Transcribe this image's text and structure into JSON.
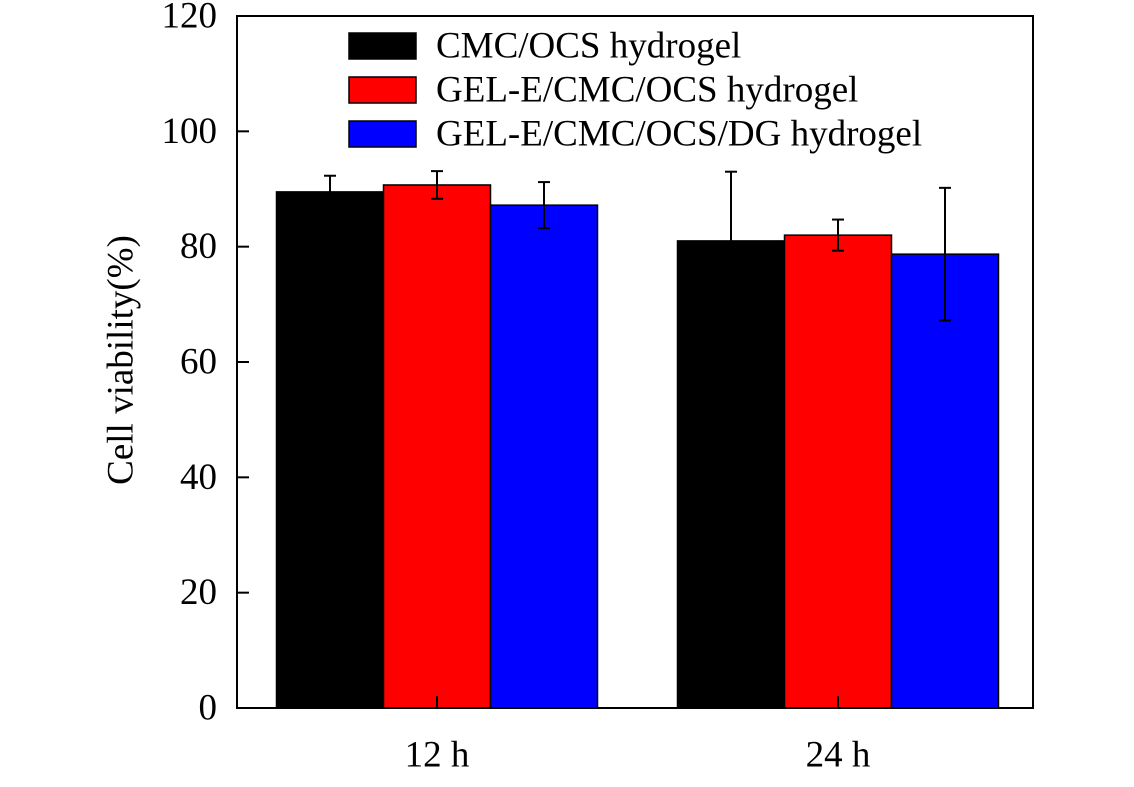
{
  "chart_data": {
    "type": "bar",
    "categories": [
      "12 h",
      "24 h"
    ],
    "series": [
      {
        "name": "CMC/OCS hydrogel",
        "color": "#000000",
        "values": [
          89.5,
          81.0
        ],
        "errors": [
          2.8,
          12.0
        ]
      },
      {
        "name": "GEL-E/CMC/OCS hydrogel",
        "color": "#ff0000",
        "values": [
          90.7,
          82.0
        ],
        "errors": [
          2.4,
          2.7
        ]
      },
      {
        "name": "GEL-E/CMC/OCS/DG hydrogel",
        "color": "#0000ff",
        "values": [
          87.2,
          78.7
        ],
        "errors": [
          4.0,
          11.5
        ]
      }
    ],
    "title": "",
    "xlabel": "",
    "ylabel": "Cell viability(%)",
    "ylim": [
      0,
      120
    ],
    "yticks": [
      "0",
      "20",
      "40",
      "60",
      "80",
      "100",
      "120"
    ],
    "grid": false,
    "legend_position": "top-right"
  }
}
